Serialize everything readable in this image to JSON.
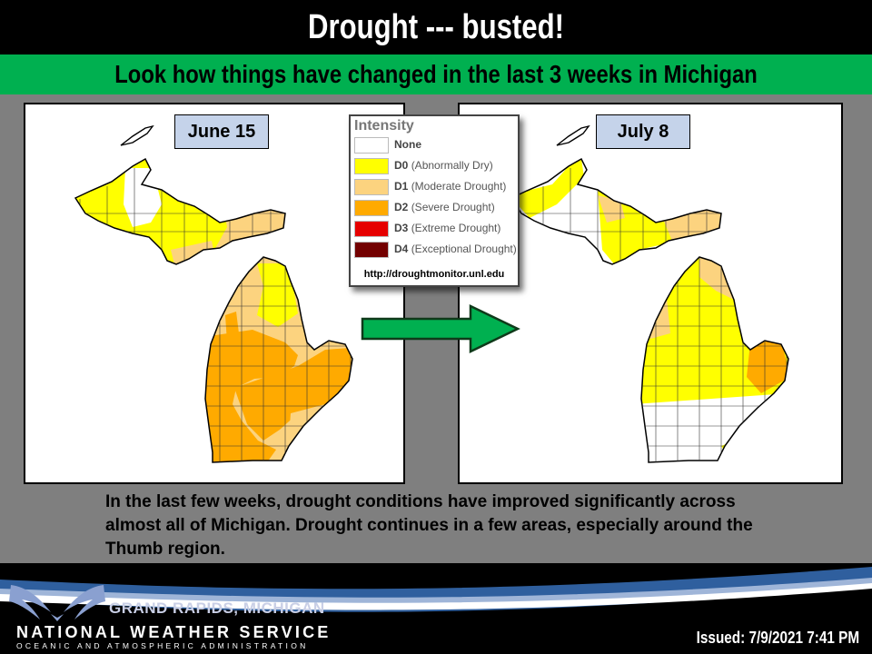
{
  "header": {
    "title": "Drought --- busted!",
    "subtitle": "Look how things have changed in the last 3 weeks in Michigan"
  },
  "maps": [
    {
      "date_label": "June 15",
      "region": "Michigan"
    },
    {
      "date_label": "July 8",
      "region": "Michigan"
    }
  ],
  "legend": {
    "title": "Intensity",
    "items": [
      {
        "code": "",
        "label": "None",
        "color": "#ffffff"
      },
      {
        "code": "D0",
        "label": "(Abnormally Dry)",
        "color": "#ffff00"
      },
      {
        "code": "D1",
        "label": "(Moderate Drought)",
        "color": "#fcd37f"
      },
      {
        "code": "D2",
        "label": "(Severe Drought)",
        "color": "#ffaa00"
      },
      {
        "code": "D3",
        "label": "(Extreme Drought)",
        "color": "#e60000"
      },
      {
        "code": "D4",
        "label": "(Exceptional Drought)",
        "color": "#730000"
      }
    ],
    "url": "http://droughtmonitor.unl.edu"
  },
  "body_text": "In the last few weeks, drought conditions have improved significantly across almost all of Michigan. Drought continues in a few areas, especially around the Thumb region.",
  "footer": {
    "city": "GRAND RAPIDS, MICHIGAN",
    "org": "NATIONAL WEATHER SERVICE",
    "sub": "OCEANIC AND ATMOSPHERIC ADMINISTRATION",
    "issued": "Issued:  7/9/2021  7:41 PM"
  },
  "colors": {
    "title_bar": "#000000",
    "subtitle_bar": "#00b050",
    "background": "#7f7f7f",
    "arrow": "#00b050",
    "date_label_bg": "#c5d3ea"
  }
}
